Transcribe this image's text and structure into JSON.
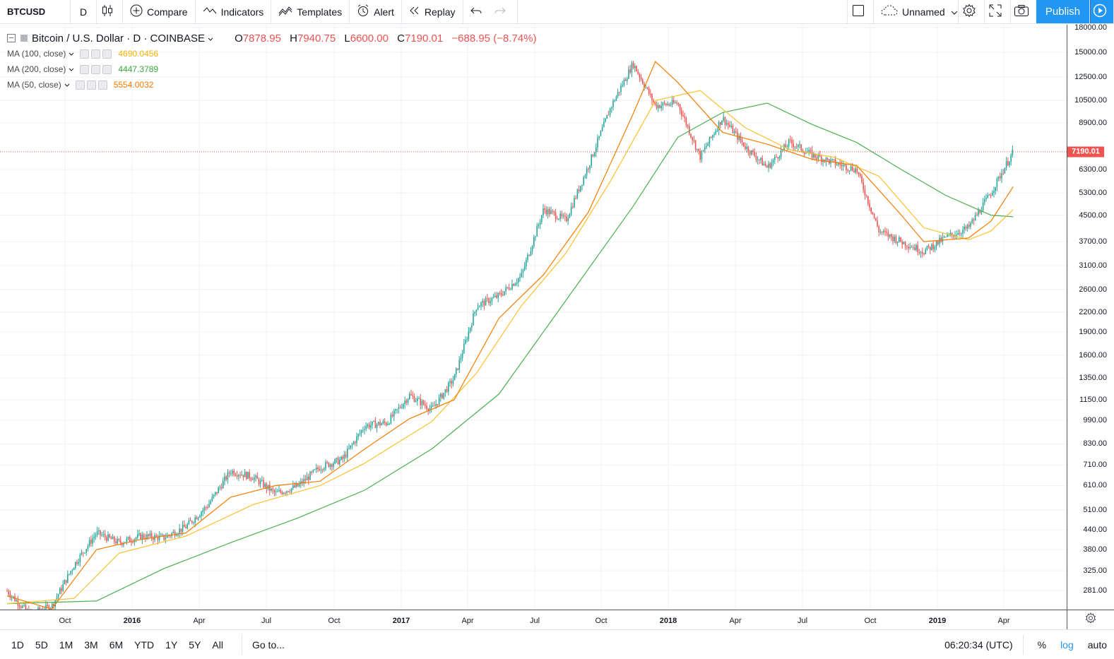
{
  "toolbar": {
    "symbol": "BTCUSD",
    "interval": "D",
    "compare": "Compare",
    "indicators": "Indicators",
    "templates": "Templates",
    "alert": "Alert",
    "replay": "Replay",
    "layout_name": "Unnamed",
    "publish": "Publish"
  },
  "legend": {
    "title": "Bitcoin / U.S. Dollar · D · COINBASE",
    "open_label": "O",
    "open": "7878.95",
    "high_label": "H",
    "high": "7940.75",
    "low_label": "L",
    "low": "6600.00",
    "close_label": "C",
    "close": "7190.01",
    "change": "−688.95 (−8.74%)",
    "indicators": [
      {
        "name": "MA (100, close)",
        "value": "4690.0456",
        "color": "#f5b300"
      },
      {
        "name": "MA (200, close)",
        "value": "4447.3789",
        "color": "#3aa83a"
      },
      {
        "name": "MA (50, close)",
        "value": "5554.0032",
        "color": "#f57c00"
      }
    ]
  },
  "price_tag": "7190.01",
  "colors": {
    "up": "#26a69a",
    "down": "#ef5350",
    "ma50": "#f57c00",
    "ma100": "#fbc02d",
    "ma200": "#4caf50",
    "grid": "#eef1f5",
    "accent": "#2196f3"
  },
  "bottom": {
    "ranges": [
      "1D",
      "5D",
      "1M",
      "3M",
      "6M",
      "YTD",
      "1Y",
      "5Y",
      "All"
    ],
    "goto": "Go to...",
    "clock": "06:20:34 (UTC)",
    "percent": "%",
    "log": "log",
    "auto": "auto"
  },
  "chart_data": {
    "type": "line",
    "title": "Bitcoin / U.S. Dollar · D · COINBASE",
    "log_scale": true,
    "grid": true,
    "price_ticks": [
      18000,
      15000,
      12500,
      10500,
      8900,
      7190.01,
      6300,
      5300,
      4500,
      3700,
      3100,
      2600,
      2200,
      1900,
      1600,
      1350,
      1150,
      990,
      830,
      710,
      610,
      510,
      440,
      380,
      325,
      281
    ],
    "price_tick_labels": [
      "18000.00",
      "15000.00",
      "12500.00",
      "10500.00",
      "8900.00",
      "7190.01",
      "6300.00",
      "5300.00",
      "4500.00",
      "3700.00",
      "3100.00",
      "2600.00",
      "2200.00",
      "1900.00",
      "1600.00",
      "1350.00",
      "1150.00",
      "990.00",
      "830.00",
      "710.00",
      "610.00",
      "510.00",
      "440.00",
      "380.00",
      "325.00",
      "281.00"
    ],
    "time_ticks": [
      {
        "label": "Oct",
        "year": false
      },
      {
        "label": "2016",
        "year": true
      },
      {
        "label": "Apr",
        "year": false
      },
      {
        "label": "Jul",
        "year": false
      },
      {
        "label": "Oct",
        "year": false
      },
      {
        "label": "2017",
        "year": true
      },
      {
        "label": "Apr",
        "year": false
      },
      {
        "label": "Jul",
        "year": false
      },
      {
        "label": "Oct",
        "year": false
      },
      {
        "label": "2018",
        "year": true
      },
      {
        "label": "Apr",
        "year": false
      },
      {
        "label": "Jul",
        "year": false
      },
      {
        "label": "Oct",
        "year": false
      },
      {
        "label": "2019",
        "year": true
      },
      {
        "label": "Apr",
        "year": false
      }
    ],
    "series_close": [
      [
        "2015-08",
        280
      ],
      [
        "2015-09",
        236
      ],
      [
        "2015-10",
        250
      ],
      [
        "2015-11",
        340
      ],
      [
        "2015-12",
        430
      ],
      [
        "2016-01",
        400
      ],
      [
        "2016-02",
        420
      ],
      [
        "2016-03",
        415
      ],
      [
        "2016-04",
        450
      ],
      [
        "2016-05",
        530
      ],
      [
        "2016-06",
        680
      ],
      [
        "2016-07",
        650
      ],
      [
        "2016-08",
        575
      ],
      [
        "2016-09",
        607
      ],
      [
        "2016-10",
        700
      ],
      [
        "2016-11",
        740
      ],
      [
        "2016-12",
        950
      ],
      [
        "2017-01",
        970
      ],
      [
        "2017-02",
        1190
      ],
      [
        "2017-03",
        1070
      ],
      [
        "2017-04",
        1350
      ],
      [
        "2017-05",
        2300
      ],
      [
        "2017-06",
        2480
      ],
      [
        "2017-07",
        2870
      ],
      [
        "2017-08",
        4700
      ],
      [
        "2017-09",
        4340
      ],
      [
        "2017-10",
        6470
      ],
      [
        "2017-11",
        10000
      ],
      [
        "2017-12",
        13800
      ],
      [
        "2018-01",
        10100
      ],
      [
        "2018-02",
        10300
      ],
      [
        "2018-03",
        6920
      ],
      [
        "2018-04",
        9240
      ],
      [
        "2018-05",
        7500
      ],
      [
        "2018-06",
        6400
      ],
      [
        "2018-07",
        7730
      ],
      [
        "2018-08",
        7030
      ],
      [
        "2018-09",
        6620
      ],
      [
        "2018-10",
        6300
      ],
      [
        "2018-11",
        4000
      ],
      [
        "2018-12",
        3700
      ],
      [
        "2019-01",
        3440
      ],
      [
        "2019-02",
        3820
      ],
      [
        "2019-03",
        4100
      ],
      [
        "2019-04",
        5300
      ],
      [
        "2019-05",
        7190.01
      ]
    ],
    "series_ma50": [
      [
        "2015-08",
        270
      ],
      [
        "2015-10",
        245
      ],
      [
        "2015-12",
        380
      ],
      [
        "2016-02",
        410
      ],
      [
        "2016-04",
        430
      ],
      [
        "2016-06",
        560
      ],
      [
        "2016-08",
        610
      ],
      [
        "2016-10",
        630
      ],
      [
        "2016-12",
        800
      ],
      [
        "2017-02",
        1000
      ],
      [
        "2017-04",
        1150
      ],
      [
        "2017-06",
        2100
      ],
      [
        "2017-08",
        2900
      ],
      [
        "2017-10",
        4600
      ],
      [
        "2017-12",
        9500
      ],
      [
        "2018-01",
        14000
      ],
      [
        "2018-02",
        12000
      ],
      [
        "2018-04",
        8300
      ],
      [
        "2018-06",
        7600
      ],
      [
        "2018-08",
        6800
      ],
      [
        "2018-10",
        6500
      ],
      [
        "2018-12",
        4500
      ],
      [
        "2019-01",
        3700
      ],
      [
        "2019-03",
        3800
      ],
      [
        "2019-04",
        4300
      ],
      [
        "2019-05",
        5554
      ]
    ],
    "series_ma100": [
      [
        "2015-08",
        255
      ],
      [
        "2015-11",
        265
      ],
      [
        "2016-01",
        370
      ],
      [
        "2016-04",
        420
      ],
      [
        "2016-07",
        530
      ],
      [
        "2016-10",
        610
      ],
      [
        "2016-12",
        720
      ],
      [
        "2017-03",
        980
      ],
      [
        "2017-05",
        1400
      ],
      [
        "2017-07",
        2300
      ],
      [
        "2017-09",
        3400
      ],
      [
        "2017-11",
        5800
      ],
      [
        "2018-01",
        10500
      ],
      [
        "2018-03",
        11300
      ],
      [
        "2018-05",
        8600
      ],
      [
        "2018-07",
        7300
      ],
      [
        "2018-09",
        6900
      ],
      [
        "2018-11",
        6000
      ],
      [
        "2019-01",
        4100
      ],
      [
        "2019-03",
        3750
      ],
      [
        "2019-04",
        4000
      ],
      [
        "2019-05",
        4690
      ]
    ],
    "series_ma200": [
      [
        "2015-08",
        255
      ],
      [
        "2015-12",
        260
      ],
      [
        "2016-03",
        330
      ],
      [
        "2016-06",
        400
      ],
      [
        "2016-09",
        480
      ],
      [
        "2016-12",
        590
      ],
      [
        "2017-03",
        800
      ],
      [
        "2017-06",
        1200
      ],
      [
        "2017-09",
        2400
      ],
      [
        "2017-12",
        4800
      ],
      [
        "2018-02",
        8000
      ],
      [
        "2018-04",
        9600
      ],
      [
        "2018-06",
        10300
      ],
      [
        "2018-08",
        8800
      ],
      [
        "2018-10",
        7700
      ],
      [
        "2018-12",
        6300
      ],
      [
        "2019-02",
        5200
      ],
      [
        "2019-04",
        4500
      ],
      [
        "2019-05",
        4447
      ]
    ]
  }
}
